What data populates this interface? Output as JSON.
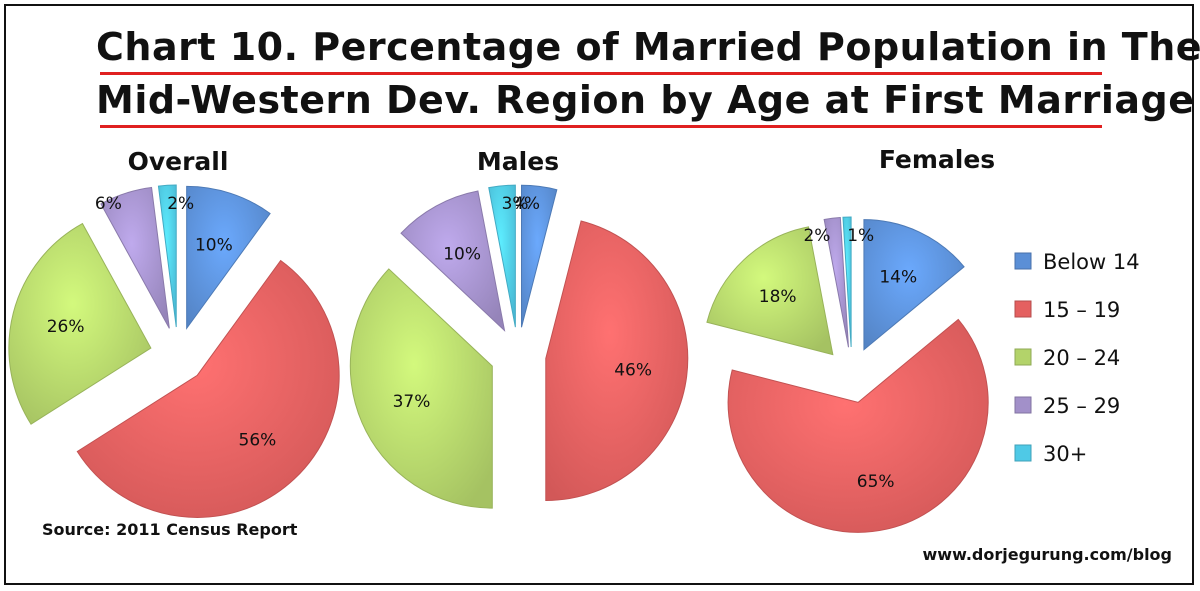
{
  "title_lines": [
    "Chart 10. Percentage of Married Population in The",
    "Mid-Western Dev. Region by Age at First Marriage"
  ],
  "source": "Source: 2011 Census Report",
  "credit": "www.dorjegurung.com/blog",
  "colors": {
    "title_rule": "#e02020",
    "Below 14": "#5b8fd6",
    "15 – 19": "#e46060",
    "20 – 24": "#b3d36a",
    "25 – 29": "#a290c9",
    "30+": "#4fc9e6"
  },
  "chart_data": [
    {
      "type": "pie",
      "title": "Overall",
      "categories": [
        "Below 14",
        "15 – 19",
        "20 – 24",
        "25 – 29",
        "30+"
      ],
      "values": [
        10,
        56,
        26,
        6,
        2
      ],
      "labels": [
        "10%",
        "56%",
        "26%",
        "6%",
        "2%"
      ],
      "exploded": true
    },
    {
      "type": "pie",
      "title": "Males",
      "categories": [
        "Below 14",
        "15 – 19",
        "20 – 24",
        "25 – 29",
        "30+"
      ],
      "values": [
        4,
        46,
        37,
        10,
        3
      ],
      "labels": [
        "4%",
        "46%",
        "37%",
        "10%",
        "3%"
      ],
      "exploded": true
    },
    {
      "type": "pie",
      "title": "Females",
      "categories": [
        "Below 14",
        "15 – 19",
        "20 – 24",
        "25 – 29",
        "30+"
      ],
      "values": [
        14,
        65,
        18,
        2,
        1
      ],
      "labels": [
        "14%",
        "65%",
        "18%",
        "2%",
        "1%"
      ],
      "exploded": true,
      "legend_position": "right",
      "legend": [
        "Below 14",
        "15 – 19",
        "20 – 24",
        "25 – 29",
        "30+"
      ]
    }
  ]
}
